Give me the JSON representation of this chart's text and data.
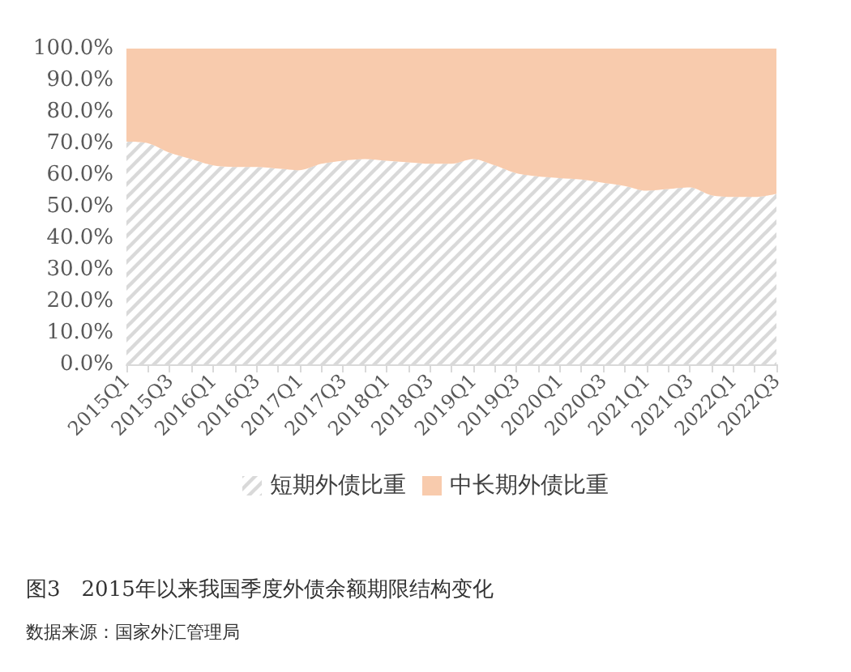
{
  "chart_data": {
    "type": "area",
    "stacked": true,
    "title": "图3　2015年以来我国季度外债余额期限结构变化",
    "annotations": [
      "数据来源：国家外汇管理局"
    ],
    "categories": [
      "2015Q1",
      null,
      "2015Q3",
      null,
      "2016Q1",
      null,
      "2016Q3",
      null,
      "2017Q1",
      null,
      "2017Q3",
      null,
      "2018Q1",
      null,
      "2018Q3",
      null,
      "2019Q1",
      null,
      "2019Q3",
      null,
      "2020Q1",
      null,
      "2020Q3",
      null,
      "2021Q1",
      null,
      "2021Q3",
      null,
      "2022Q1",
      null,
      "2022Q3"
    ],
    "series": [
      {
        "name": "短期外债比重",
        "color": "#d9d9d9",
        "values": [
          70.5,
          70,
          67,
          65,
          63,
          62.5,
          62.5,
          62,
          61.5,
          63.5,
          64.5,
          65,
          64.5,
          64,
          63.5,
          63.5,
          65,
          63,
          60.5,
          59.5,
          59,
          58.5,
          57.5,
          56.5,
          55,
          55.5,
          56,
          53.5,
          53,
          53,
          54
        ]
      },
      {
        "name": "中长期外债比重",
        "color": "#f8cbad",
        "values": [
          29.5,
          30,
          33,
          35,
          37,
          37.5,
          37.5,
          38,
          38.5,
          36.5,
          35.5,
          35,
          35.5,
          36,
          36.5,
          36.5,
          35,
          37,
          39.5,
          40.5,
          41,
          41.5,
          42.5,
          43.5,
          45,
          44.5,
          44,
          46.5,
          47,
          47,
          46
        ]
      }
    ],
    "ylim": [
      0,
      100
    ],
    "yticks": [
      {
        "value": 0,
        "label": "0.0%"
      },
      {
        "value": 10,
        "label": "10.0%"
      },
      {
        "value": 20,
        "label": "20.0%"
      },
      {
        "value": 30,
        "label": "30.0%"
      },
      {
        "value": 40,
        "label": "40.0%"
      },
      {
        "value": 50,
        "label": "50.0%"
      },
      {
        "value": 60,
        "label": "60.0%"
      },
      {
        "value": 70,
        "label": "70.0%"
      },
      {
        "value": 80,
        "label": "80.0%"
      },
      {
        "value": 90,
        "label": "90.0%"
      },
      {
        "value": 100,
        "label": "100.0%"
      }
    ],
    "grid": false,
    "legend": "bottom"
  }
}
